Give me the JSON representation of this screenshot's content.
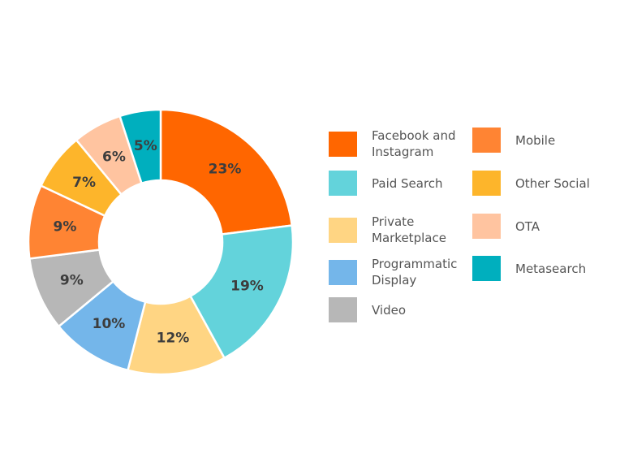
{
  "chart_data": {
    "type": "pie",
    "variant": "donut",
    "title": "",
    "series": [
      {
        "label": "Facebook and Instagram",
        "value": 23,
        "display": "23%",
        "color": "#FF6600"
      },
      {
        "label": "Paid Search",
        "value": 19,
        "display": "19%",
        "color": "#63D3DB"
      },
      {
        "label": "Private Marketplace",
        "value": 12,
        "display": "12%",
        "color": "#FFD583"
      },
      {
        "label": "Programmatic Display",
        "value": 10,
        "display": "10%",
        "color": "#74B6EA"
      },
      {
        "label": "Video",
        "value": 9,
        "display": "9%",
        "color": "#B7B7B7"
      },
      {
        "label": "Mobile",
        "value": 9,
        "display": "9%",
        "color": "#FF8433"
      },
      {
        "label": "Other Social",
        "value": 7,
        "display": "7%",
        "color": "#FDB52B"
      },
      {
        "label": "OTA",
        "value": 6,
        "display": "6%",
        "color": "#FFC4A0"
      },
      {
        "label": "Metasearch",
        "value": 5,
        "display": "5%",
        "color": "#00AFBE"
      }
    ],
    "legend_position": "right",
    "legend_columns": [
      [
        "Facebook and Instagram",
        "Paid Search",
        "Private Marketplace",
        "Programmatic Display",
        "Video"
      ],
      [
        "Mobile",
        "Other Social",
        "OTA",
        "Metasearch"
      ]
    ]
  }
}
